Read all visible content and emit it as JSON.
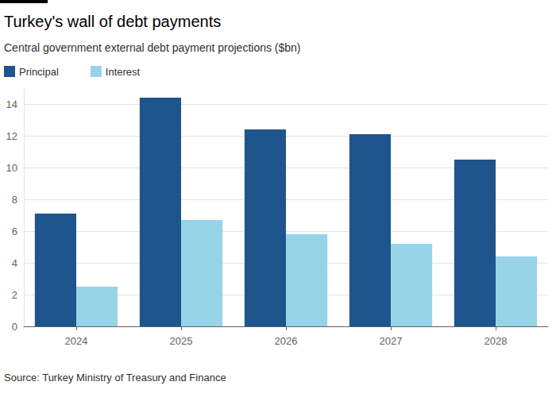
{
  "chart_data": {
    "type": "bar",
    "title": "Turkey's wall of debt payments",
    "subtitle": "Central government external debt payment projections ($bn)",
    "source": "Source: Turkey Ministry of Treasury and Finance",
    "categories": [
      "2024",
      "2025",
      "2026",
      "2027",
      "2028"
    ],
    "series": [
      {
        "name": "Principal",
        "color": "#1e558c",
        "values": [
          7.1,
          14.4,
          12.4,
          12.1,
          10.5
        ]
      },
      {
        "name": "Interest",
        "color": "#96d5e8",
        "values": [
          2.5,
          6.7,
          5.8,
          5.2,
          4.4
        ]
      }
    ],
    "ylim": [
      0,
      15
    ],
    "yticks": [
      0,
      2,
      4,
      6,
      8,
      10,
      12,
      14
    ],
    "grid": true,
    "legend": "top-left"
  }
}
